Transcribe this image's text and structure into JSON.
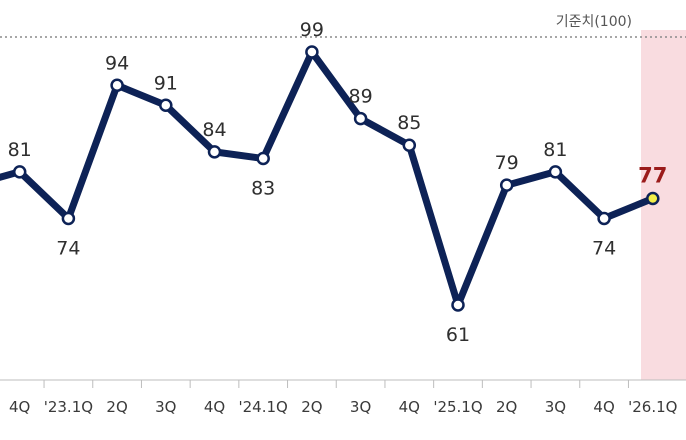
{
  "chart_data": {
    "type": "line",
    "categories": [
      "",
      "4Q",
      "'23.1Q",
      "2Q",
      "3Q",
      "4Q",
      "'24.1Q",
      "2Q",
      "3Q",
      "4Q",
      "'25.1Q",
      "2Q",
      "3Q",
      "4Q",
      "'26.1Q"
    ],
    "series": [
      {
        "values": [
          79,
          81,
          74,
          94,
          91,
          84,
          83,
          99,
          89,
          85,
          61,
          79,
          81,
          74,
          77
        ]
      }
    ],
    "value_labels": [
      "",
      "81",
      "74",
      "94",
      "91",
      "84",
      "83",
      "99",
      "89",
      "85",
      "61",
      "79",
      "81",
      "74",
      "77"
    ],
    "reference_line": {
      "value": 100,
      "label": "기준치(100)"
    },
    "highlight_index": 14,
    "ylim": [
      40,
      100
    ],
    "grid": false,
    "colors": {
      "line": "#0d2256",
      "marker_fill": "#ffffff",
      "highlight_marker": "#f2ee4a",
      "highlight_band": "#f9dce0",
      "highlight_label": "#9b1b1b",
      "reference": "#8a8a8a"
    }
  }
}
